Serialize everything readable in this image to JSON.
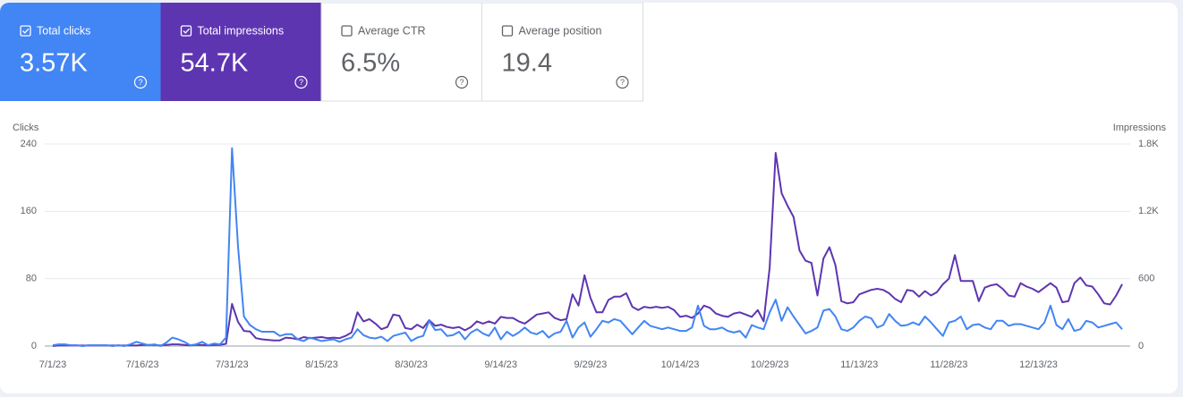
{
  "metrics": [
    {
      "label": "Total clicks",
      "value": "3.57K",
      "selected": true,
      "color": "#4285f4"
    },
    {
      "label": "Total impressions",
      "value": "54.7K",
      "selected": true,
      "color": "#5e35b1"
    },
    {
      "label": "Average CTR",
      "value": "6.5%",
      "selected": false
    },
    {
      "label": "Average position",
      "value": "19.4",
      "selected": false
    }
  ],
  "chart_data": {
    "type": "line",
    "y_label": "Clicks",
    "y2_label": "Impressions",
    "categories": [
      "7/1/23",
      null,
      null,
      null,
      null,
      null,
      null,
      null,
      null,
      null,
      null,
      null,
      null,
      null,
      null,
      "7/16/23",
      null,
      null,
      null,
      null,
      null,
      null,
      null,
      null,
      null,
      null,
      null,
      null,
      null,
      null,
      "7/31/23",
      null,
      null,
      null,
      null,
      null,
      null,
      null,
      null,
      null,
      null,
      null,
      null,
      null,
      null,
      "8/15/23",
      null,
      null,
      null,
      null,
      null,
      null,
      null,
      null,
      null,
      null,
      null,
      null,
      null,
      null,
      "8/30/23",
      null,
      null,
      null,
      null,
      null,
      null,
      null,
      null,
      null,
      null,
      null,
      null,
      null,
      null,
      "9/14/23",
      null,
      null,
      null,
      null,
      null,
      null,
      null,
      null,
      null,
      null,
      null,
      null,
      null,
      null,
      "9/29/23",
      null,
      null,
      null,
      null,
      null,
      null,
      null,
      null,
      null,
      null,
      null,
      null,
      null,
      null,
      "10/14/23",
      null,
      null,
      null,
      null,
      null,
      null,
      null,
      null,
      null,
      null,
      null,
      null,
      null,
      null,
      "10/29/23",
      null,
      null,
      null,
      null,
      null,
      null,
      null,
      null,
      null,
      null,
      null,
      null,
      null,
      null,
      "11/13/23",
      null,
      null,
      null,
      null,
      null,
      null,
      null,
      null,
      null,
      null,
      null,
      null,
      null,
      null,
      "11/28/23",
      null,
      null,
      null,
      null,
      null,
      null,
      null,
      null,
      null,
      null,
      null,
      null,
      null,
      null,
      "12/13/23",
      null,
      null,
      null,
      null,
      null,
      null,
      null,
      null,
      null,
      null,
      null,
      null,
      null,
      null
    ],
    "series": [
      {
        "name": "Impressions",
        "color": "#5e35b1",
        "axis": "y2",
        "values": [
          0,
          5,
          5,
          5,
          5,
          5,
          5,
          5,
          5,
          5,
          5,
          5,
          5,
          5,
          5,
          10,
          10,
          10,
          5,
          10,
          15,
          15,
          10,
          5,
          10,
          10,
          5,
          10,
          10,
          20,
          375,
          215,
          135,
          130,
          70,
          60,
          55,
          50,
          50,
          75,
          70,
          60,
          80,
          70,
          75,
          80,
          70,
          75,
          70,
          90,
          120,
          300,
          220,
          240,
          200,
          150,
          170,
          280,
          270,
          160,
          150,
          190,
          160,
          230,
          180,
          190,
          170,
          160,
          170,
          140,
          170,
          220,
          200,
          220,
          200,
          260,
          250,
          250,
          220,
          200,
          240,
          280,
          290,
          300,
          250,
          230,
          240,
          460,
          360,
          630,
          430,
          300,
          300,
          410,
          440,
          440,
          470,
          350,
          320,
          350,
          340,
          350,
          340,
          350,
          320,
          260,
          270,
          250,
          290,
          360,
          340,
          290,
          270,
          260,
          290,
          300,
          280,
          260,
          320,
          220,
          700,
          1720,
          1360,
          1250,
          1150,
          850,
          760,
          740,
          450,
          780,
          880,
          720,
          400,
          380,
          390,
          460,
          480,
          500,
          510,
          500,
          470,
          420,
          390,
          500,
          490,
          440,
          490,
          450,
          480,
          550,
          600,
          810,
          580,
          580,
          580,
          400,
          520,
          540,
          550,
          510,
          450,
          440,
          560,
          530,
          510,
          480,
          520,
          560,
          520,
          390,
          400,
          560,
          610,
          540,
          530,
          460,
          380,
          370,
          450,
          550
        ]
      },
      {
        "name": "Clicks",
        "color": "#4285f4",
        "values": [
          1,
          2,
          2,
          1,
          1,
          0,
          1,
          1,
          1,
          1,
          0,
          1,
          0,
          2,
          5,
          3,
          1,
          2,
          0,
          4,
          10,
          8,
          5,
          1,
          2,
          5,
          1,
          3,
          2,
          10,
          235,
          118,
          35,
          25,
          20,
          17,
          17,
          17,
          12,
          14,
          14,
          8,
          6,
          10,
          8,
          6,
          7,
          8,
          5,
          8,
          10,
          20,
          13,
          10,
          9,
          11,
          6,
          12,
          14,
          16,
          6,
          10,
          12,
          30,
          19,
          20,
          12,
          13,
          17,
          8,
          16,
          20,
          15,
          12,
          22,
          8,
          17,
          12,
          16,
          22,
          16,
          14,
          18,
          10,
          15,
          17,
          30,
          10,
          22,
          28,
          11,
          20,
          30,
          28,
          32,
          30,
          22,
          14,
          22,
          30,
          24,
          22,
          20,
          22,
          20,
          18,
          18,
          22,
          48,
          24,
          20,
          20,
          22,
          18,
          16,
          18,
          10,
          25,
          22,
          20,
          40,
          55,
          30,
          46,
          35,
          25,
          15,
          18,
          22,
          42,
          44,
          35,
          20,
          18,
          22,
          30,
          35,
          33,
          22,
          25,
          38,
          30,
          24,
          25,
          28,
          25,
          35,
          28,
          20,
          12,
          28,
          30,
          35,
          20,
          25,
          26,
          22,
          20,
          30,
          30,
          24,
          26,
          26,
          24,
          22,
          20,
          28,
          48,
          25,
          20,
          32,
          18,
          20,
          30,
          28,
          22,
          24,
          26,
          28,
          20
        ]
      }
    ],
    "ylim": [
      0,
      240
    ],
    "yticks": [
      0,
      80,
      160,
      240
    ],
    "y2lim": [
      0,
      1800
    ],
    "y2ticks": [
      0,
      600,
      {
        "value": 1200,
        "label": "1.2K"
      },
      {
        "value": 1800,
        "label": "1.8K"
      }
    ],
    "grid": true
  }
}
